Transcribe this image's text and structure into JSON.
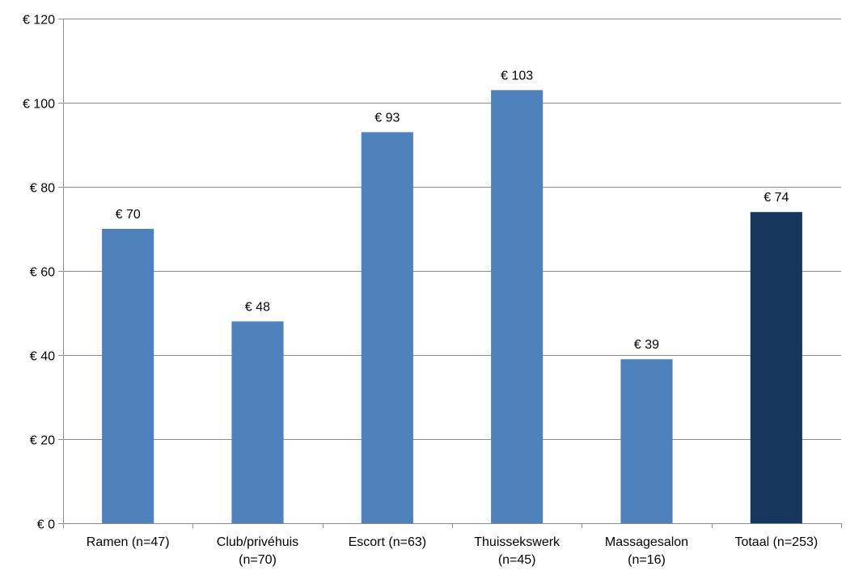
{
  "chart_data": {
    "type": "bar",
    "categories": [
      [
        "Ramen (n=47)"
      ],
      [
        "Club/privéhuis",
        "(n=70)"
      ],
      [
        "Escort (n=63)"
      ],
      [
        "Thuissekswerk",
        "(n=45)"
      ],
      [
        "Massagesalon",
        "(n=16)"
      ],
      [
        "Totaal (n=253)"
      ]
    ],
    "values": [
      70,
      48,
      93,
      103,
      39,
      74
    ],
    "data_labels": [
      "€ 70",
      "€ 48",
      "€ 93",
      "€ 103",
      "€ 39",
      "€ 74"
    ],
    "colors": [
      "#4f81bd",
      "#4f81bd",
      "#4f81bd",
      "#4f81bd",
      "#4f81bd",
      "#17375e"
    ],
    "yticks": [
      0,
      20,
      40,
      60,
      80,
      100,
      120
    ],
    "ytick_labels": [
      "€ 0",
      "€ 20",
      "€ 40",
      "€ 60",
      "€ 80",
      "€ 100",
      "€ 120"
    ],
    "ylim": [
      0,
      120
    ],
    "grid": true,
    "title": "",
    "xlabel": "",
    "ylabel": ""
  }
}
